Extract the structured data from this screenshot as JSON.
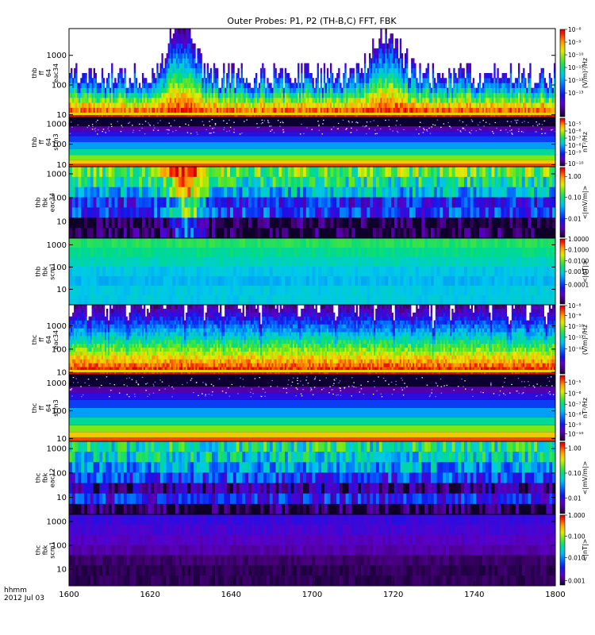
{
  "chart_data": {
    "type": "heatmap",
    "title": "Outer Probes: P1, P2 (TH-B,C) FFT, FBK",
    "xaxis": {
      "range_minutes": [
        960,
        1080
      ],
      "ticks": [
        {
          "minute": 960,
          "label": "1600"
        },
        {
          "minute": 980,
          "label": "1620"
        },
        {
          "minute": 1000,
          "label": "1640"
        },
        {
          "minute": 1020,
          "label": "1700"
        },
        {
          "minute": 1040,
          "label": "1720"
        },
        {
          "minute": 1060,
          "label": "1740"
        },
        {
          "minute": 1080,
          "label": "1800"
        }
      ],
      "label_line1": "hhmm",
      "label_line2": "2012 Jul 03"
    },
    "panels": [
      {
        "id": "thb-ff-eac34",
        "ylabel": [
          "thb",
          "ff",
          "64",
          "eac34"
        ],
        "kind": "fft",
        "yrange": [
          8,
          8000
        ],
        "yscale": "log",
        "yticks": [
          {
            "v": 10,
            "label": "10"
          },
          {
            "v": 100,
            "label": "100"
          },
          {
            "v": 1000,
            "label": "1000"
          }
        ],
        "colorbar": {
          "unit": "(V/m)²/Hz",
          "ticks": [
            {
              "label": "10⁻⁸",
              "frac": 0.0
            },
            {
              "label": "10⁻⁹",
              "frac": 0.1455
            },
            {
              "label": "10⁻¹⁰",
              "frac": 0.2912
            },
            {
              "label": "10⁻¹¹",
              "frac": 0.4368
            },
            {
              "label": "10⁻¹²",
              "frac": 0.5825
            },
            {
              "label": "10⁻¹³",
              "frac": 0.7282
            }
          ]
        }
      },
      {
        "id": "thb-ff-scm3",
        "ylabel": [
          "thb",
          "ff",
          "64",
          "scm3"
        ],
        "kind": "scm",
        "yrange": [
          8,
          2000
        ],
        "yscale": "log",
        "yticks": [
          {
            "v": 10,
            "label": "10"
          },
          {
            "v": 100,
            "label": "100"
          },
          {
            "v": 1000,
            "label": "1000"
          }
        ],
        "colorbar": {
          "unit": "nT²/Hz",
          "ticks": [
            {
              "label": "10⁻⁵",
              "frac": 0.1167
            },
            {
              "label": "10⁻⁶",
              "frac": 0.2667
            },
            {
              "label": "10⁻⁷",
              "frac": 0.4167
            },
            {
              "label": "10⁻⁸",
              "frac": 0.5667
            },
            {
              "label": "10⁻⁹",
              "frac": 0.7167
            },
            {
              "label": "10⁻¹⁰",
              "frac": 0.95
            }
          ]
        }
      },
      {
        "id": "thb-fbk-eac34",
        "ylabel": [
          "thb",
          "fbk",
          "eac34"
        ],
        "kind": "fbk-e",
        "yrange": [
          2,
          2000
        ],
        "yscale": "log",
        "yticks": [
          {
            "v": 10,
            "label": "10"
          },
          {
            "v": 100,
            "label": "100"
          },
          {
            "v": 1000,
            "label": "1000"
          }
        ],
        "colorbar": {
          "unit": "<|mV/m|>",
          "ticks": [
            {
              "label": "1.00",
              "frac": 0.1277
            },
            {
              "label": "0.10",
              "frac": 0.4255
            },
            {
              "label": "0.01",
              "frac": 0.734
            }
          ]
        }
      },
      {
        "id": "thb-fbk-scm1",
        "ylabel": [
          "thb",
          "fbk",
          "scm1"
        ],
        "kind": "fbk-b",
        "yrange": [
          2,
          2000
        ],
        "yscale": "log",
        "yticks": [
          {
            "v": 10,
            "label": "10"
          },
          {
            "v": 100,
            "label": "100"
          },
          {
            "v": 1000,
            "label": "1000"
          }
        ],
        "colorbar": {
          "unit": "<|nT|>",
          "ticks": [
            {
              "label": "1.0000",
              "frac": 0.0
            },
            {
              "label": "0.1000",
              "frac": 0.1667
            },
            {
              "label": "0.0100",
              "frac": 0.3333
            },
            {
              "label": "0.0010",
              "frac": 0.5
            },
            {
              "label": "0.0001",
              "frac": 0.7024
            }
          ]
        }
      },
      {
        "id": "thc-ff-eac34",
        "ylabel": [
          "thc",
          "ff",
          "64",
          "eac34"
        ],
        "kind": "fft",
        "yrange": [
          8,
          8000
        ],
        "yscale": "log",
        "yticks": [
          {
            "v": 10,
            "label": "10"
          },
          {
            "v": 100,
            "label": "100"
          },
          {
            "v": 1000,
            "label": "1000"
          }
        ],
        "colorbar": {
          "unit": "(V/m)²/Hz",
          "ticks": [
            {
              "label": "10⁻⁸",
              "frac": 0.0
            },
            {
              "label": "10⁻⁹",
              "frac": 0.1463
            },
            {
              "label": "10⁻¹⁰",
              "frac": 0.3049
            },
            {
              "label": "10⁻¹¹",
              "frac": 0.4634
            },
            {
              "label": "10⁻¹²",
              "frac": 0.6341
            }
          ]
        }
      },
      {
        "id": "thc-ff-scm3",
        "ylabel": [
          "thc",
          "ff",
          "64",
          "scm3"
        ],
        "kind": "scm",
        "yrange": [
          8,
          2000
        ],
        "yscale": "log",
        "yticks": [
          {
            "v": 10,
            "label": "10"
          },
          {
            "v": 100,
            "label": "100"
          },
          {
            "v": 1000,
            "label": "1000"
          }
        ],
        "colorbar": {
          "unit": "nT²/Hz",
          "ticks": [
            {
              "label": "10⁻⁵",
              "frac": 0.1039
            },
            {
              "label": "10⁻⁶",
              "frac": 0.2727
            },
            {
              "label": "10⁻⁷",
              "frac": 0.4416
            },
            {
              "label": "10⁻⁸",
              "frac": 0.5974
            },
            {
              "label": "10⁻⁹",
              "frac": 0.7532
            },
            {
              "label": "10⁻¹⁰",
              "frac": 0.8961
            }
          ]
        }
      },
      {
        "id": "thc-fbk-eac12",
        "ylabel": [
          "thc",
          "fbk",
          "eac12"
        ],
        "kind": "fbk-e2",
        "yrange": [
          2,
          2000
        ],
        "yscale": "log",
        "yticks": [
          {
            "v": 10,
            "label": "10"
          },
          {
            "v": 100,
            "label": "100"
          },
          {
            "v": 1000,
            "label": "1000"
          }
        ],
        "colorbar": {
          "unit": "<|mV/m|>",
          "ticks": [
            {
              "label": "1.00",
              "frac": 0.0843
            },
            {
              "label": "0.10",
              "frac": 0.4337
            },
            {
              "label": "0.01",
              "frac": 0.7831
            }
          ]
        }
      },
      {
        "id": "thc-fbk-scm1",
        "ylabel": [
          "thc",
          "fbk",
          "scm1"
        ],
        "kind": "fbk-b2",
        "yrange": [
          2,
          2000
        ],
        "yscale": "log",
        "yticks": [
          {
            "v": 10,
            "label": "10"
          },
          {
            "v": 100,
            "label": "100"
          },
          {
            "v": 1000,
            "label": "1000"
          }
        ],
        "colorbar": {
          "unit": "<|nT|>",
          "ticks": [
            {
              "label": "1.000",
              "frac": 0.0
            },
            {
              "label": "0.100",
              "frac": 0.303
            },
            {
              "label": "0.010",
              "frac": 0.6061
            },
            {
              "label": "0.001",
              "frac": 0.9394
            }
          ]
        }
      }
    ]
  }
}
